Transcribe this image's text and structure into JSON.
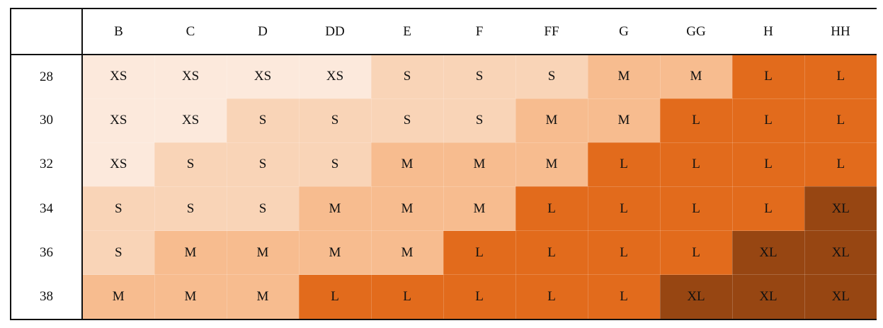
{
  "chart_data": {
    "type": "heatmap",
    "title": "",
    "xlabel": "",
    "ylabel": "",
    "x_categories": [
      "B",
      "C",
      "D",
      "DD",
      "E",
      "F",
      "FF",
      "G",
      "GG",
      "H",
      "HH"
    ],
    "y_categories": [
      "28",
      "30",
      "32",
      "34",
      "36",
      "38"
    ],
    "values": [
      [
        "XS",
        "XS",
        "XS",
        "XS",
        "S",
        "S",
        "S",
        "M",
        "M",
        "L",
        "L"
      ],
      [
        "XS",
        "XS",
        "S",
        "S",
        "S",
        "S",
        "M",
        "M",
        "L",
        "L",
        "L"
      ],
      [
        "XS",
        "S",
        "S",
        "S",
        "M",
        "M",
        "M",
        "L",
        "L",
        "L",
        "L"
      ],
      [
        "S",
        "S",
        "S",
        "M",
        "M",
        "M",
        "L",
        "L",
        "L",
        "L",
        "XL"
      ],
      [
        "S",
        "M",
        "M",
        "M",
        "M",
        "L",
        "L",
        "L",
        "L",
        "XL",
        "XL"
      ],
      [
        "M",
        "M",
        "M",
        "L",
        "L",
        "L",
        "L",
        "L",
        "XL",
        "XL",
        "XL"
      ]
    ],
    "color_scale": {
      "XS": "#fce9dc",
      "S": "#f9d4b7",
      "M": "#f7bc8f",
      "L": "#e26b1c",
      "XL": "#974612"
    }
  }
}
